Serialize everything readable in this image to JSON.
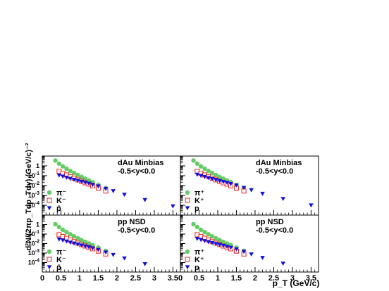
{
  "figure": {
    "ylabel": "d²N/(2πp_Tdp_Tdy) (GeV/c)⁻²",
    "xlabel": "p_T (GeV/c)"
  },
  "colors": {
    "pion": "#66cc66",
    "kaon": "#ee2222",
    "proton": "#1111dd"
  },
  "chart_data": [
    {
      "type": "scatter",
      "position": "top-left",
      "title": "",
      "annotation": [
        "dAu Minbias",
        "-0.5<y<0.0"
      ],
      "legend": [
        "π⁻",
        "K⁻",
        "p̄"
      ],
      "xlim": [
        0,
        3.7
      ],
      "ylim": [
        1e-05,
        10
      ],
      "yscale": "log",
      "x_ticks": [],
      "series": [
        {
          "name": "π⁻",
          "marker": "circle",
          "x": [
            0.35,
            0.45,
            0.55,
            0.65,
            0.75,
            0.85,
            0.95,
            1.05,
            1.15,
            1.25,
            1.35,
            1.5,
            1.7
          ],
          "y": [
            3.5,
            1.7,
            0.9,
            0.52,
            0.31,
            0.19,
            0.12,
            0.076,
            0.05,
            0.033,
            0.022,
            0.012,
            0.0055
          ]
        },
        {
          "name": "K⁻",
          "marker": "open-square",
          "x": [
            0.45,
            0.55,
            0.65,
            0.75,
            0.85,
            0.95,
            1.05,
            1.15,
            1.25,
            1.35,
            1.5,
            1.7
          ],
          "y": [
            0.28,
            0.18,
            0.12,
            0.08,
            0.055,
            0.038,
            0.027,
            0.019,
            0.014,
            0.0095,
            0.0055,
            0.0028
          ]
        },
        {
          "name": "p̄",
          "marker": "triangle-down",
          "x": [
            0.45,
            0.55,
            0.65,
            0.75,
            0.85,
            0.95,
            1.05,
            1.15,
            1.25,
            1.35,
            1.5,
            1.7,
            1.9,
            2.2,
            2.75,
            3.5
          ],
          "y": [
            0.11,
            0.085,
            0.065,
            0.05,
            0.04,
            0.032,
            0.025,
            0.02,
            0.016,
            0.012,
            0.0085,
            0.0048,
            0.0028,
            0.0012,
            0.00035,
            8e-05
          ]
        }
      ]
    },
    {
      "type": "scatter",
      "position": "top-right",
      "title": "",
      "annotation": [
        "dAu Minbias",
        "-0.5<y<0.0"
      ],
      "legend": [
        "π⁺",
        "K⁺",
        "p"
      ],
      "xlim": [
        0,
        3.7
      ],
      "ylim": [
        1e-05,
        10
      ],
      "yscale": "log",
      "x_ticks": [],
      "series": [
        {
          "name": "π⁺",
          "marker": "circle",
          "x": [
            0.35,
            0.45,
            0.55,
            0.65,
            0.75,
            0.85,
            0.95,
            1.05,
            1.15,
            1.25,
            1.35,
            1.5,
            1.7
          ],
          "y": [
            3.5,
            1.7,
            0.9,
            0.52,
            0.31,
            0.19,
            0.12,
            0.076,
            0.05,
            0.033,
            0.022,
            0.012,
            0.0055
          ]
        },
        {
          "name": "K⁺",
          "marker": "open-square",
          "x": [
            0.45,
            0.55,
            0.65,
            0.75,
            0.85,
            0.95,
            1.05,
            1.15,
            1.25,
            1.35,
            1.5,
            1.7
          ],
          "y": [
            0.28,
            0.18,
            0.12,
            0.08,
            0.055,
            0.038,
            0.027,
            0.019,
            0.014,
            0.0095,
            0.0055,
            0.0028
          ]
        },
        {
          "name": "p",
          "marker": "triangle-down",
          "x": [
            0.45,
            0.55,
            0.65,
            0.75,
            0.85,
            0.95,
            1.05,
            1.15,
            1.25,
            1.35,
            1.5,
            1.7,
            1.9,
            2.2,
            2.75,
            3.5
          ],
          "y": [
            0.13,
            0.1,
            0.078,
            0.06,
            0.048,
            0.038,
            0.03,
            0.024,
            0.019,
            0.015,
            0.0105,
            0.006,
            0.0035,
            0.0015,
            0.00045,
            0.0001
          ]
        }
      ]
    },
    {
      "type": "scatter",
      "position": "bottom-left",
      "title": "",
      "annotation": [
        "pp NSD",
        "-0.5<y<0.0"
      ],
      "legend": [
        "π⁻",
        "K⁻",
        "p̄"
      ],
      "xlim": [
        0,
        3.7
      ],
      "ylim": [
        1e-05,
        10
      ],
      "yscale": "log",
      "x_ticks": [
        "0",
        "0.5",
        "1",
        "1.5",
        "2",
        "2.5",
        "3",
        "3.5"
      ],
      "series": [
        {
          "name": "π⁻",
          "marker": "circle",
          "x": [
            0.35,
            0.45,
            0.55,
            0.65,
            0.75,
            0.85,
            0.95,
            1.05,
            1.15,
            1.25,
            1.35,
            1.5,
            1.7
          ],
          "y": [
            1.1,
            0.55,
            0.28,
            0.16,
            0.095,
            0.058,
            0.036,
            0.023,
            0.015,
            0.01,
            0.0068,
            0.0038,
            0.0017
          ]
        },
        {
          "name": "K⁻",
          "marker": "open-square",
          "x": [
            0.45,
            0.55,
            0.65,
            0.75,
            0.85,
            0.95,
            1.05,
            1.15,
            1.25,
            1.35,
            1.5,
            1.7
          ],
          "y": [
            0.085,
            0.055,
            0.036,
            0.024,
            0.016,
            0.011,
            0.0078,
            0.0055,
            0.0039,
            0.0028,
            0.0016,
            0.0008
          ]
        },
        {
          "name": "p̄",
          "marker": "triangle-down",
          "x": [
            0.45,
            0.55,
            0.65,
            0.75,
            0.85,
            0.95,
            1.05,
            1.15,
            1.25,
            1.35,
            1.5,
            1.7,
            1.9,
            2.2,
            2.75
          ],
          "y": [
            0.028,
            0.022,
            0.017,
            0.013,
            0.0105,
            0.0083,
            0.0066,
            0.0052,
            0.0041,
            0.0032,
            0.0022,
            0.0012,
            0.00065,
            0.00028,
            7e-05
          ]
        }
      ]
    },
    {
      "type": "scatter",
      "position": "bottom-right",
      "title": "",
      "annotation": [
        "pp NSD",
        "-0.5<y<0.0"
      ],
      "legend": [
        "π⁺",
        "K⁺",
        "p"
      ],
      "xlim": [
        0,
        3.7
      ],
      "ylim": [
        1e-05,
        10
      ],
      "yscale": "log",
      "x_ticks": [
        "0",
        "0.5",
        "1",
        "1.5",
        "2",
        "2.5",
        "3",
        "3.5"
      ],
      "series": [
        {
          "name": "π⁺",
          "marker": "circle",
          "x": [
            0.35,
            0.45,
            0.55,
            0.65,
            0.75,
            0.85,
            0.95,
            1.05,
            1.15,
            1.25,
            1.35,
            1.5,
            1.7
          ],
          "y": [
            1.1,
            0.55,
            0.28,
            0.16,
            0.095,
            0.058,
            0.036,
            0.023,
            0.015,
            0.01,
            0.0068,
            0.0038,
            0.0017
          ]
        },
        {
          "name": "K⁺",
          "marker": "open-square",
          "x": [
            0.45,
            0.55,
            0.65,
            0.75,
            0.85,
            0.95,
            1.05,
            1.15,
            1.25,
            1.35,
            1.5,
            1.7
          ],
          "y": [
            0.085,
            0.055,
            0.036,
            0.024,
            0.016,
            0.011,
            0.0078,
            0.0055,
            0.0039,
            0.0028,
            0.0016,
            0.0008
          ]
        },
        {
          "name": "p",
          "marker": "triangle-down",
          "x": [
            0.45,
            0.55,
            0.65,
            0.75,
            0.85,
            0.95,
            1.05,
            1.15,
            1.25,
            1.35,
            1.5,
            1.7,
            1.9,
            2.2,
            2.75
          ],
          "y": [
            0.032,
            0.025,
            0.019,
            0.015,
            0.012,
            0.0095,
            0.0075,
            0.006,
            0.0047,
            0.0037,
            0.0025,
            0.0014,
            0.00075,
            0.00032,
            8e-05
          ]
        }
      ]
    }
  ]
}
